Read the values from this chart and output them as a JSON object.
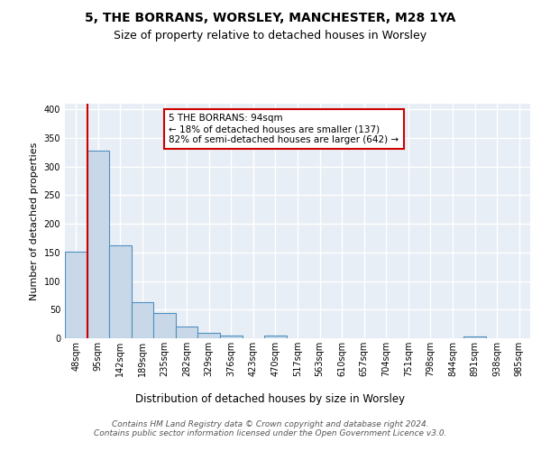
{
  "title1": "5, THE BORRANS, WORSLEY, MANCHESTER, M28 1YA",
  "title2": "Size of property relative to detached houses in Worsley",
  "xlabel": "Distribution of detached houses by size in Worsley",
  "ylabel": "Number of detached properties",
  "categories": [
    "48sqm",
    "95sqm",
    "142sqm",
    "189sqm",
    "235sqm",
    "282sqm",
    "329sqm",
    "376sqm",
    "423sqm",
    "470sqm",
    "517sqm",
    "563sqm",
    "610sqm",
    "657sqm",
    "704sqm",
    "751sqm",
    "798sqm",
    "844sqm",
    "891sqm",
    "938sqm",
    "985sqm"
  ],
  "values": [
    152,
    328,
    163,
    63,
    44,
    21,
    9,
    4,
    0,
    4,
    0,
    0,
    0,
    0,
    0,
    0,
    0,
    0,
    3,
    0,
    0
  ],
  "bar_color": "#c8d8e8",
  "bar_edge_color": "#5090c0",
  "vline_x_index": 1,
  "vline_color": "#cc0000",
  "annotation_text": "5 THE BORRANS: 94sqm\n← 18% of detached houses are smaller (137)\n82% of semi-detached houses are larger (642) →",
  "annotation_box_color": "white",
  "annotation_box_edge_color": "#cc0000",
  "ylim": [
    0,
    410
  ],
  "yticks": [
    0,
    50,
    100,
    150,
    200,
    250,
    300,
    350,
    400
  ],
  "background_color": "#e8eef5",
  "grid_color": "white",
  "footnote": "Contains HM Land Registry data © Crown copyright and database right 2024.\nContains public sector information licensed under the Open Government Licence v3.0.",
  "title1_fontsize": 10,
  "title2_fontsize": 9,
  "xlabel_fontsize": 8.5,
  "ylabel_fontsize": 8,
  "tick_fontsize": 7,
  "annot_fontsize": 7.5,
  "footnote_fontsize": 6.5
}
